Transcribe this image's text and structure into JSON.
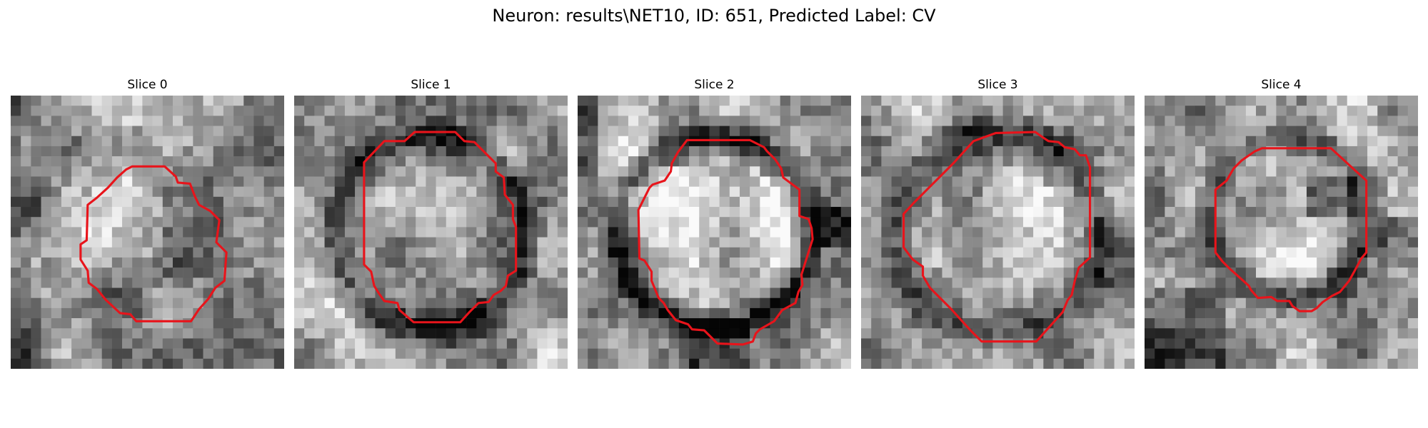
{
  "figure": {
    "title": "Neuron: results\\NET10, ID: 651, Predicted Label: CV"
  },
  "contour_color": "#e8141b",
  "panels": [
    {
      "title": "Slice 0",
      "seed": 101,
      "shape": "blob-left"
    },
    {
      "title": "Slice 1",
      "seed": 202,
      "shape": "ring"
    },
    {
      "title": "Slice 2",
      "seed": 303,
      "shape": "ring-bright"
    },
    {
      "title": "Slice 3",
      "seed": 404,
      "shape": "ring-diffuse"
    },
    {
      "title": "Slice 4",
      "seed": 505,
      "shape": "ring-dark-right"
    }
  ]
}
